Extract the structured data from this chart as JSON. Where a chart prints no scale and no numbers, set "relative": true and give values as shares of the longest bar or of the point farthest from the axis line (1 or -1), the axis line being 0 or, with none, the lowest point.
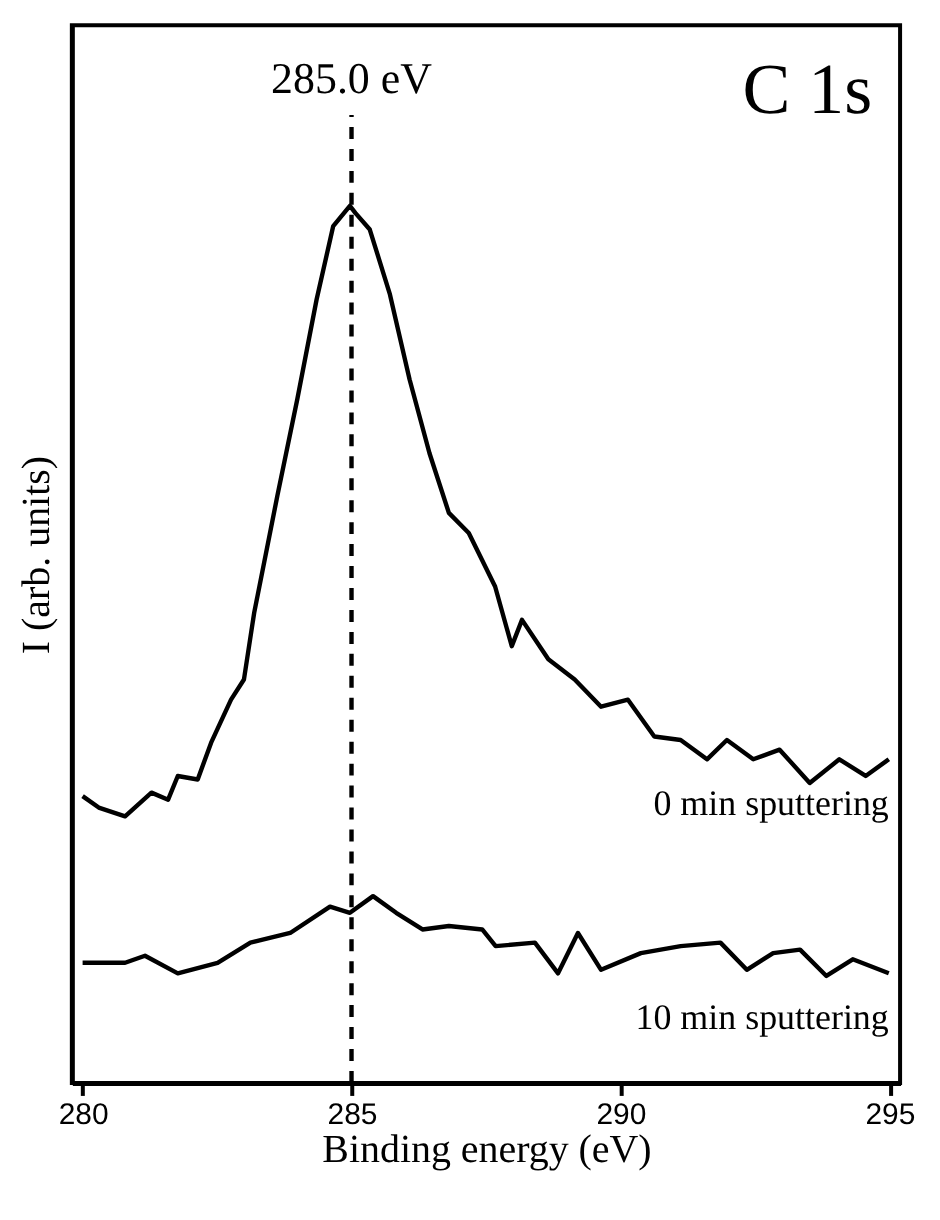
{
  "chart_data": {
    "type": "line",
    "relative": true,
    "xlabel": "Binding energy (eV)",
    "ylabel": "I (arb. units)",
    "xlim": [
      279.8,
      295.2
    ],
    "xticks": [
      280,
      285,
      290,
      295
    ],
    "grid": false,
    "legend": false,
    "tick_labels": "x",
    "line_style": "solid",
    "marker": "none",
    "series": [
      {
        "name": "0 min sputtering",
        "color": "#000000",
        "x": [
          280.0,
          280.3,
          280.79,
          281.28,
          281.59,
          281.77,
          282.14,
          282.39,
          282.76,
          283.0,
          283.19,
          283.62,
          283.99,
          284.35,
          284.66,
          284.97,
          285.07,
          285.34,
          285.71,
          286.08,
          286.45,
          286.81,
          287.18,
          287.67,
          287.98,
          288.17,
          288.66,
          289.15,
          289.64,
          290.14,
          290.63,
          291.12,
          291.61,
          291.98,
          292.47,
          292.96,
          293.52,
          294.07,
          294.56,
          294.99
        ],
        "values": [
          0.327,
          0.314,
          0.304,
          0.331,
          0.323,
          0.35,
          0.346,
          0.388,
          0.437,
          0.46,
          0.536,
          0.669,
          0.779,
          0.893,
          0.977,
          1.0,
          0.992,
          0.973,
          0.9,
          0.802,
          0.718,
          0.65,
          0.627,
          0.566,
          0.498,
          0.528,
          0.483,
          0.46,
          0.429,
          0.437,
          0.395,
          0.391,
          0.369,
          0.391,
          0.369,
          0.38,
          0.342,
          0.369,
          0.35,
          0.369
        ]
      },
      {
        "name": "10 min sputtering",
        "color": "#000000",
        "x": [
          280.0,
          280.79,
          281.16,
          281.77,
          282.51,
          283.12,
          283.86,
          284.6,
          284.97,
          285.4,
          285.83,
          286.32,
          286.81,
          287.43,
          287.68,
          288.41,
          288.84,
          289.21,
          289.64,
          290.38,
          291.12,
          291.86,
          292.35,
          292.84,
          293.34,
          293.83,
          294.32,
          294.99
        ],
        "values": [
          0.137,
          0.137,
          0.145,
          0.125,
          0.137,
          0.16,
          0.171,
          0.201,
          0.194,
          0.213,
          0.194,
          0.175,
          0.179,
          0.175,
          0.156,
          0.16,
          0.125,
          0.171,
          0.129,
          0.148,
          0.156,
          0.16,
          0.129,
          0.148,
          0.152,
          0.122,
          0.141,
          0.125
        ]
      }
    ],
    "ref_lines": [
      {
        "axis": "x",
        "value": 285.0,
        "label": "285.0 eV",
        "color": "#000000",
        "line_style": "dashed"
      }
    ],
    "annotations": [
      "C 1s"
    ]
  }
}
